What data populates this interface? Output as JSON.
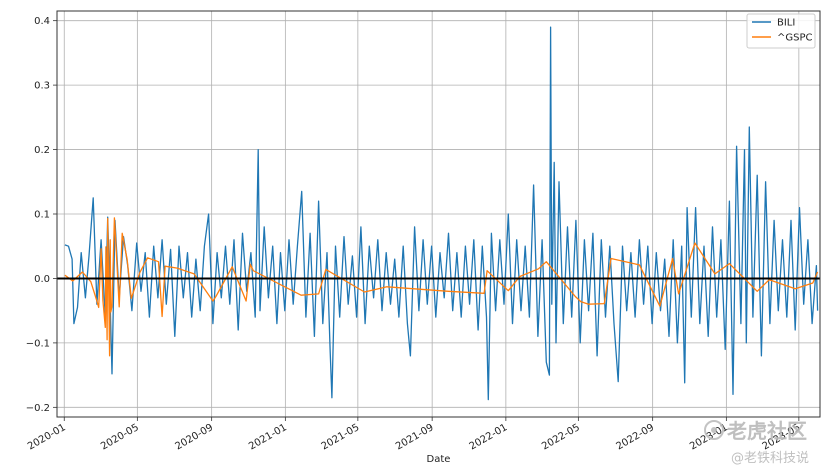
{
  "chart_data": {
    "type": "line",
    "title": "",
    "xlabel": "Date",
    "ylabel": "",
    "x_range": [
      "2019-12-20",
      "2023-06-05"
    ],
    "ylim": [
      -0.215,
      0.415
    ],
    "grid": true,
    "legend_position": "top-right",
    "reference_line": {
      "y": 0.0,
      "color": "#000000"
    },
    "x_ticks": [
      {
        "date": "2020-01-01",
        "label": "2020-01"
      },
      {
        "date": "2020-05-01",
        "label": "2020-05"
      },
      {
        "date": "2020-09-01",
        "label": "2020-09"
      },
      {
        "date": "2021-01-01",
        "label": "2021-01"
      },
      {
        "date": "2021-05-01",
        "label": "2021-05"
      },
      {
        "date": "2021-09-01",
        "label": "2021-09"
      },
      {
        "date": "2022-01-01",
        "label": "2022-01"
      },
      {
        "date": "2022-05-01",
        "label": "2022-05"
      },
      {
        "date": "2022-09-01",
        "label": "2022-09"
      },
      {
        "date": "2023-01-01",
        "label": "2023-01"
      },
      {
        "date": "2023-05-01",
        "label": "2023-05"
      }
    ],
    "y_ticks": [
      {
        "value": 0.4,
        "label": "0.4"
      },
      {
        "value": 0.3,
        "label": "0.3"
      },
      {
        "value": 0.2,
        "label": "0.2"
      },
      {
        "value": 0.1,
        "label": "0.1"
      },
      {
        "value": 0.0,
        "label": "0.0"
      },
      {
        "value": -0.1,
        "label": "−0.1"
      },
      {
        "value": -0.2,
        "label": "−0.2"
      }
    ],
    "series": [
      {
        "name": "BILI",
        "color": "#1f77b4",
        "points": [
          [
            "2020-01-02",
            0.052
          ],
          [
            "2020-01-08",
            0.05
          ],
          [
            "2020-01-14",
            0.03
          ],
          [
            "2020-01-17",
            -0.07
          ],
          [
            "2020-01-23",
            -0.045
          ],
          [
            "2020-01-29",
            0.04
          ],
          [
            "2020-02-05",
            -0.03
          ],
          [
            "2020-02-11",
            0.035
          ],
          [
            "2020-02-18",
            0.125
          ],
          [
            "2020-02-24",
            -0.04
          ],
          [
            "2020-03-02",
            0.06
          ],
          [
            "2020-03-09",
            -0.06
          ],
          [
            "2020-03-13",
            0.095
          ],
          [
            "2020-03-17",
            -0.04
          ],
          [
            "2020-03-20",
            -0.148
          ],
          [
            "2020-03-25",
            0.09
          ],
          [
            "2020-04-01",
            -0.03
          ],
          [
            "2020-04-08",
            0.065
          ],
          [
            "2020-04-15",
            0.02
          ],
          [
            "2020-04-22",
            -0.05
          ],
          [
            "2020-04-30",
            0.055
          ],
          [
            "2020-05-07",
            -0.02
          ],
          [
            "2020-05-14",
            0.04
          ],
          [
            "2020-05-21",
            -0.06
          ],
          [
            "2020-05-28",
            0.05
          ],
          [
            "2020-06-04",
            -0.03
          ],
          [
            "2020-06-11",
            0.06
          ],
          [
            "2020-06-18",
            -0.04
          ],
          [
            "2020-06-25",
            0.045
          ],
          [
            "2020-07-02",
            -0.09
          ],
          [
            "2020-07-09",
            0.05
          ],
          [
            "2020-07-16",
            -0.03
          ],
          [
            "2020-07-23",
            0.04
          ],
          [
            "2020-07-30",
            -0.06
          ],
          [
            "2020-08-06",
            0.03
          ],
          [
            "2020-08-13",
            -0.05
          ],
          [
            "2020-08-20",
            0.05
          ],
          [
            "2020-08-27",
            0.1
          ],
          [
            "2020-09-03",
            -0.07
          ],
          [
            "2020-09-10",
            0.04
          ],
          [
            "2020-09-17",
            -0.03
          ],
          [
            "2020-09-24",
            0.05
          ],
          [
            "2020-10-01",
            -0.04
          ],
          [
            "2020-10-08",
            0.06
          ],
          [
            "2020-10-15",
            -0.08
          ],
          [
            "2020-10-22",
            0.07
          ],
          [
            "2020-10-29",
            -0.02
          ],
          [
            "2020-11-05",
            0.04
          ],
          [
            "2020-11-12",
            -0.06
          ],
          [
            "2020-11-17",
            0.2
          ],
          [
            "2020-11-20",
            -0.05
          ],
          [
            "2020-11-27",
            0.08
          ],
          [
            "2020-12-04",
            -0.03
          ],
          [
            "2020-12-11",
            0.05
          ],
          [
            "2020-12-18",
            -0.07
          ],
          [
            "2020-12-24",
            0.04
          ],
          [
            "2020-12-31",
            -0.05
          ],
          [
            "2021-01-07",
            0.06
          ],
          [
            "2021-01-14",
            -0.04
          ],
          [
            "2021-01-21",
            0.05
          ],
          [
            "2021-01-28",
            0.135
          ],
          [
            "2021-02-04",
            -0.06
          ],
          [
            "2021-02-11",
            0.07
          ],
          [
            "2021-02-18",
            -0.09
          ],
          [
            "2021-02-25",
            0.12
          ],
          [
            "2021-03-04",
            -0.07
          ],
          [
            "2021-03-11",
            0.04
          ],
          [
            "2021-03-16",
            -0.11
          ],
          [
            "2021-03-19",
            -0.185
          ],
          [
            "2021-03-25",
            0.05
          ],
          [
            "2021-04-01",
            -0.06
          ],
          [
            "2021-04-08",
            0.065
          ],
          [
            "2021-04-15",
            -0.04
          ],
          [
            "2021-04-22",
            0.035
          ],
          [
            "2021-04-29",
            -0.06
          ],
          [
            "2021-05-06",
            0.08
          ],
          [
            "2021-05-13",
            -0.07
          ],
          [
            "2021-05-20",
            0.05
          ],
          [
            "2021-05-27",
            -0.03
          ],
          [
            "2021-06-03",
            0.06
          ],
          [
            "2021-06-10",
            -0.05
          ],
          [
            "2021-06-17",
            0.04
          ],
          [
            "2021-06-24",
            -0.04
          ],
          [
            "2021-07-01",
            0.03
          ],
          [
            "2021-07-08",
            -0.06
          ],
          [
            "2021-07-15",
            0.05
          ],
          [
            "2021-07-22",
            -0.07
          ],
          [
            "2021-07-27",
            -0.12
          ],
          [
            "2021-08-03",
            0.08
          ],
          [
            "2021-08-10",
            -0.05
          ],
          [
            "2021-08-17",
            0.06
          ],
          [
            "2021-08-24",
            -0.04
          ],
          [
            "2021-08-31",
            0.05
          ],
          [
            "2021-09-07",
            -0.06
          ],
          [
            "2021-09-14",
            0.04
          ],
          [
            "2021-09-21",
            -0.03
          ],
          [
            "2021-09-28",
            0.07
          ],
          [
            "2021-10-05",
            -0.05
          ],
          [
            "2021-10-12",
            0.04
          ],
          [
            "2021-10-19",
            -0.06
          ],
          [
            "2021-10-26",
            0.05
          ],
          [
            "2021-11-02",
            -0.04
          ],
          [
            "2021-11-09",
            0.06
          ],
          [
            "2021-11-16",
            -0.08
          ],
          [
            "2021-11-23",
            0.05
          ],
          [
            "2021-11-30",
            -0.06
          ],
          [
            "2021-12-03",
            -0.188
          ],
          [
            "2021-12-08",
            0.07
          ],
          [
            "2021-12-15",
            -0.05
          ],
          [
            "2021-12-22",
            0.06
          ],
          [
            "2021-12-29",
            -0.04
          ],
          [
            "2022-01-05",
            0.1
          ],
          [
            "2022-01-12",
            -0.07
          ],
          [
            "2022-01-19",
            0.06
          ],
          [
            "2022-01-26",
            -0.05
          ],
          [
            "2022-02-02",
            0.05
          ],
          [
            "2022-02-09",
            -0.06
          ],
          [
            "2022-02-16",
            0.145
          ],
          [
            "2022-02-23",
            -0.09
          ],
          [
            "2022-03-02",
            0.06
          ],
          [
            "2022-03-09",
            -0.13
          ],
          [
            "2022-03-14",
            -0.15
          ],
          [
            "2022-03-16",
            0.39
          ],
          [
            "2022-03-18",
            -0.04
          ],
          [
            "2022-03-22",
            0.18
          ],
          [
            "2022-03-25",
            -0.1
          ],
          [
            "2022-03-30",
            0.15
          ],
          [
            "2022-04-06",
            -0.07
          ],
          [
            "2022-04-13",
            0.08
          ],
          [
            "2022-04-20",
            -0.06
          ],
          [
            "2022-04-27",
            0.09
          ],
          [
            "2022-05-04",
            -0.1
          ],
          [
            "2022-05-11",
            0.06
          ],
          [
            "2022-05-18",
            -0.05
          ],
          [
            "2022-05-25",
            0.07
          ],
          [
            "2022-06-01",
            -0.12
          ],
          [
            "2022-06-08",
            0.06
          ],
          [
            "2022-06-15",
            -0.06
          ],
          [
            "2022-06-22",
            0.05
          ],
          [
            "2022-06-29",
            -0.07
          ],
          [
            "2022-07-06",
            -0.16
          ],
          [
            "2022-07-13",
            0.05
          ],
          [
            "2022-07-20",
            -0.05
          ],
          [
            "2022-07-27",
            0.04
          ],
          [
            "2022-08-03",
            -0.06
          ],
          [
            "2022-08-10",
            0.06
          ],
          [
            "2022-08-17",
            -0.04
          ],
          [
            "2022-08-24",
            0.05
          ],
          [
            "2022-08-31",
            -0.07
          ],
          [
            "2022-09-07",
            0.04
          ],
          [
            "2022-09-14",
            -0.05
          ],
          [
            "2022-09-21",
            0.03
          ],
          [
            "2022-09-28",
            -0.09
          ],
          [
            "2022-10-05",
            0.06
          ],
          [
            "2022-10-12",
            -0.1
          ],
          [
            "2022-10-19",
            0.05
          ],
          [
            "2022-10-24",
            -0.162
          ],
          [
            "2022-10-28",
            0.11
          ],
          [
            "2022-11-04",
            -0.06
          ],
          [
            "2022-11-11",
            0.11
          ],
          [
            "2022-11-18",
            -0.07
          ],
          [
            "2022-11-25",
            0.05
          ],
          [
            "2022-12-02",
            -0.09
          ],
          [
            "2022-12-09",
            0.08
          ],
          [
            "2022-12-16",
            -0.06
          ],
          [
            "2022-12-23",
            0.06
          ],
          [
            "2022-12-30",
            -0.11
          ],
          [
            "2023-01-06",
            0.12
          ],
          [
            "2023-01-12",
            -0.18
          ],
          [
            "2023-01-18",
            0.205
          ],
          [
            "2023-01-25",
            -0.07
          ],
          [
            "2023-01-31",
            0.2
          ],
          [
            "2023-02-03",
            -0.1
          ],
          [
            "2023-02-08",
            0.235
          ],
          [
            "2023-02-14",
            -0.06
          ],
          [
            "2023-02-21",
            0.16
          ],
          [
            "2023-02-28",
            -0.12
          ],
          [
            "2023-03-07",
            0.15
          ],
          [
            "2023-03-14",
            -0.07
          ],
          [
            "2023-03-21",
            0.09
          ],
          [
            "2023-03-28",
            -0.05
          ],
          [
            "2023-04-04",
            0.06
          ],
          [
            "2023-04-11",
            -0.06
          ],
          [
            "2023-04-18",
            0.09
          ],
          [
            "2023-04-25",
            -0.08
          ],
          [
            "2023-05-02",
            0.11
          ],
          [
            "2023-05-09",
            -0.04
          ],
          [
            "2023-05-16",
            0.06
          ],
          [
            "2023-05-23",
            -0.07
          ],
          [
            "2023-05-30",
            0.02
          ],
          [
            "2023-06-01",
            -0.05
          ]
        ]
      },
      {
        "name": "^GSPC",
        "color": "#ff7f0e",
        "points": [
          [
            "2020-01-02",
            0.005
          ],
          [
            "2020-01-15",
            -0.004
          ],
          [
            "2020-01-31",
            0.01
          ],
          [
            "2020-02-14",
            -0.005
          ],
          [
            "2020-02-24",
            -0.035
          ],
          [
            "2020-02-27",
            -0.045
          ],
          [
            "2020-03-02",
            0.046
          ],
          [
            "2020-03-05",
            -0.034
          ],
          [
            "2020-03-09",
            -0.076
          ],
          [
            "2020-03-10",
            0.049
          ],
          [
            "2020-03-12",
            -0.095
          ],
          [
            "2020-03-13",
            0.093
          ],
          [
            "2020-03-16",
            -0.12
          ],
          [
            "2020-03-17",
            0.06
          ],
          [
            "2020-03-18",
            -0.052
          ],
          [
            "2020-03-20",
            -0.043
          ],
          [
            "2020-03-24",
            0.094
          ],
          [
            "2020-03-26",
            0.062
          ],
          [
            "2020-04-01",
            -0.044
          ],
          [
            "2020-04-06",
            0.07
          ],
          [
            "2020-04-14",
            0.03
          ],
          [
            "2020-04-21",
            -0.031
          ],
          [
            "2020-05-05",
            0.009
          ],
          [
            "2020-05-18",
            0.032
          ],
          [
            "2020-06-05",
            0.026
          ],
          [
            "2020-06-11",
            -0.059
          ],
          [
            "2020-06-16",
            0.019
          ],
          [
            "2020-07-06",
            0.016
          ],
          [
            "2020-08-03",
            0.007
          ],
          [
            "2020-09-03",
            -0.035
          ],
          [
            "2020-09-08",
            -0.028
          ],
          [
            "2020-10-05",
            0.018
          ],
          [
            "2020-10-28",
            -0.035
          ],
          [
            "2020-11-04",
            0.022
          ],
          [
            "2020-11-09",
            0.012
          ],
          [
            "2021-01-27",
            -0.026
          ],
          [
            "2021-02-25",
            -0.024
          ],
          [
            "2021-03-09",
            0.014
          ],
          [
            "2021-05-12",
            -0.021
          ],
          [
            "2021-06-18",
            -0.013
          ],
          [
            "2021-09-28",
            -0.02
          ],
          [
            "2021-11-26",
            -0.023
          ],
          [
            "2021-12-01",
            0.012
          ],
          [
            "2022-01-05",
            -0.019
          ],
          [
            "2022-01-24",
            0.003
          ],
          [
            "2022-02-24",
            0.015
          ],
          [
            "2022-03-09",
            0.026
          ],
          [
            "2022-04-26",
            -0.028
          ],
          [
            "2022-05-05",
            -0.036
          ],
          [
            "2022-05-18",
            -0.04
          ],
          [
            "2022-06-13",
            -0.039
          ],
          [
            "2022-06-24",
            0.031
          ],
          [
            "2022-08-10",
            0.021
          ],
          [
            "2022-09-13",
            -0.043
          ],
          [
            "2022-10-04",
            0.031
          ],
          [
            "2022-10-14",
            -0.024
          ],
          [
            "2022-11-10",
            0.055
          ],
          [
            "2022-12-13",
            0.007
          ],
          [
            "2023-01-06",
            0.023
          ],
          [
            "2023-02-21",
            -0.02
          ],
          [
            "2023-03-13",
            -0.002
          ],
          [
            "2023-04-25",
            -0.016
          ],
          [
            "2023-05-24",
            -0.007
          ],
          [
            "2023-06-01",
            0.01
          ]
        ]
      }
    ]
  },
  "watermark": {
    "brand_text": "老虎社区",
    "author_text": "@老铁科技说"
  }
}
